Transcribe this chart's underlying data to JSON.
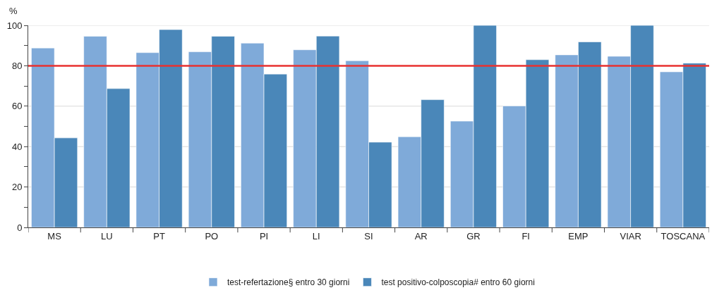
{
  "chart_data": {
    "type": "bar",
    "ylabel": "%",
    "categories": [
      "MS",
      "LU",
      "PT",
      "PO",
      "PI",
      "LI",
      "SI",
      "AR",
      "GR",
      "FI",
      "EMP",
      "VIAR",
      "TOSCANA"
    ],
    "series": [
      {
        "name": "test-refertazione§ entro 30 giorni",
        "color": "#7faad9",
        "values": [
          88.8,
          94.6,
          86.5,
          86.9,
          91.2,
          87.9,
          82.5,
          44.9,
          52.6,
          60.1,
          85.4,
          84.7,
          77.0
        ]
      },
      {
        "name": "test positivo-colposcopia# entro 60 giorni",
        "color": "#4a87b9",
        "values": [
          44.3,
          68.7,
          97.9,
          94.6,
          75.9,
          94.7,
          42.2,
          63.2,
          100,
          83.0,
          91.8,
          100,
          81.3
        ]
      }
    ],
    "ylim": [
      0,
      100
    ],
    "yticks": [
      0,
      {
        "value": 10,
        "label": null
      },
      20,
      {
        "value": 30,
        "label": null
      },
      40,
      {
        "value": 50,
        "label": null
      },
      60,
      {
        "value": 70,
        "label": null
      },
      80,
      {
        "value": 90,
        "label": null
      },
      100
    ],
    "ref_lines": [
      {
        "axis": "y",
        "value": 80,
        "color": "#e8312f"
      }
    ],
    "grid": "y",
    "legend": "bottom"
  }
}
